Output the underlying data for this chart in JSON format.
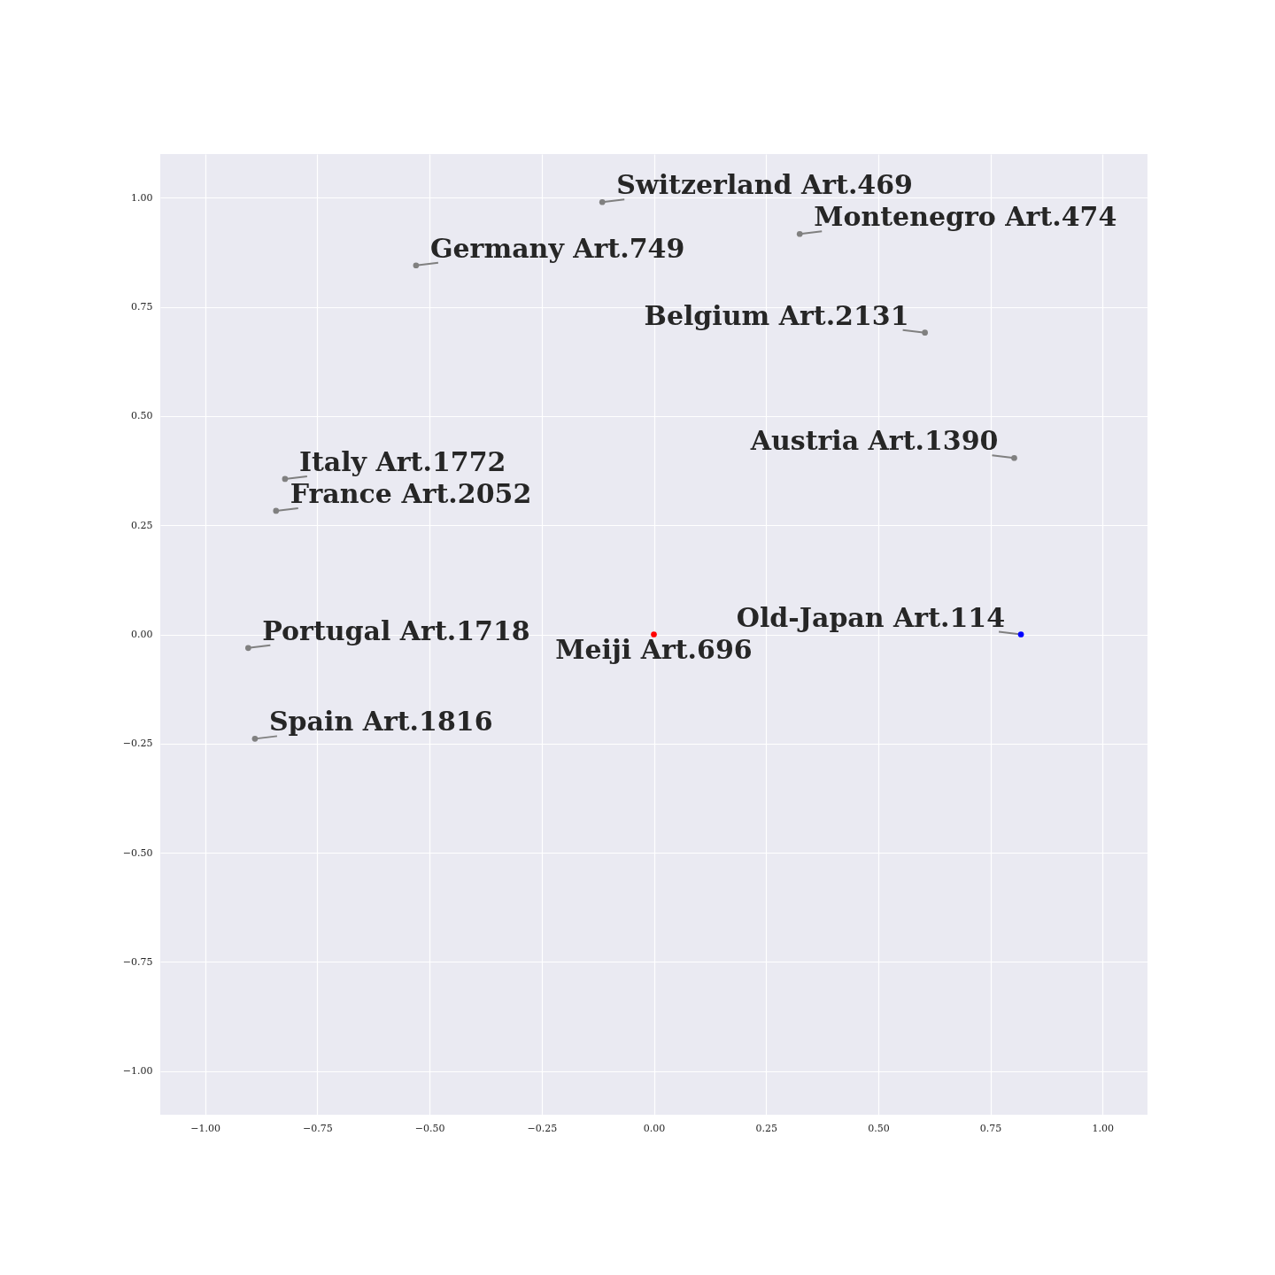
{
  "chart_data": {
    "type": "scatter",
    "xlim": [
      -1.1,
      1.1
    ],
    "ylim": [
      -1.1,
      1.1
    ],
    "xticks": [
      {
        "value": -1,
        "label": "−1.00"
      },
      {
        "value": -0.75,
        "label": "−0.75"
      },
      {
        "value": -0.5,
        "label": "−0.50"
      },
      {
        "value": -0.25,
        "label": "−0.25"
      },
      {
        "value": 0,
        "label": "0.00"
      },
      {
        "value": 0.25,
        "label": "0.25"
      },
      {
        "value": 0.5,
        "label": "0.50"
      },
      {
        "value": 0.75,
        "label": "0.75"
      },
      {
        "value": 1,
        "label": "1.00"
      }
    ],
    "yticks": [
      {
        "value": -1,
        "label": "−1.00"
      },
      {
        "value": -0.75,
        "label": "−0.75"
      },
      {
        "value": -0.5,
        "label": "−0.50"
      },
      {
        "value": -0.25,
        "label": "−0.25"
      },
      {
        "value": 0,
        "label": "0.00"
      },
      {
        "value": 0.25,
        "label": "0.25"
      },
      {
        "value": 0.5,
        "label": "0.50"
      },
      {
        "value": 0.75,
        "label": "0.75"
      },
      {
        "value": 1,
        "label": "1.00"
      }
    ],
    "grid": true,
    "series": [
      {
        "marker": "circle",
        "x": [
          -0.115,
          0.325,
          -0.53,
          0.604,
          0.803,
          -0.822,
          -0.842,
          -0.904,
          -0.889,
          0,
          0.818
        ],
        "values": [
          0.99,
          0.917,
          0.845,
          0.691,
          0.404,
          0.356,
          0.283,
          -0.031,
          -0.239,
          0,
          0
        ],
        "colors": [
          "#808080",
          "#808080",
          "#808080",
          "#808080",
          "#808080",
          "#808080",
          "#808080",
          "#808080",
          "#808080",
          "#ff0000",
          "#0000ff"
        ]
      }
    ],
    "annotations": [
      {
        "text": "Switzerland Art.469",
        "x": -0.115,
        "y": 0.99
      },
      {
        "text": "Montenegro Art.474",
        "x": 0.325,
        "y": 0.917
      },
      {
        "text": "Germany Art.749",
        "x": -0.53,
        "y": 0.845
      },
      {
        "text": "Belgium Art.2131",
        "x": 0.604,
        "y": 0.691
      },
      {
        "text": "Austria Art.1390",
        "x": 0.803,
        "y": 0.404
      },
      {
        "text": "Italy Art.1772",
        "x": -0.822,
        "y": 0.356
      },
      {
        "text": "France Art.2052",
        "x": -0.842,
        "y": 0.283
      },
      {
        "text": "Portugal Art.1718",
        "x": -0.904,
        "y": -0.031
      },
      {
        "text": "Spain Art.1816",
        "x": -0.889,
        "y": -0.239
      },
      {
        "text": "Meiji Art.696",
        "x": 0,
        "y": 0
      },
      {
        "text": "Old-Japan Art.114",
        "x": 0.818,
        "y": 0
      }
    ]
  }
}
